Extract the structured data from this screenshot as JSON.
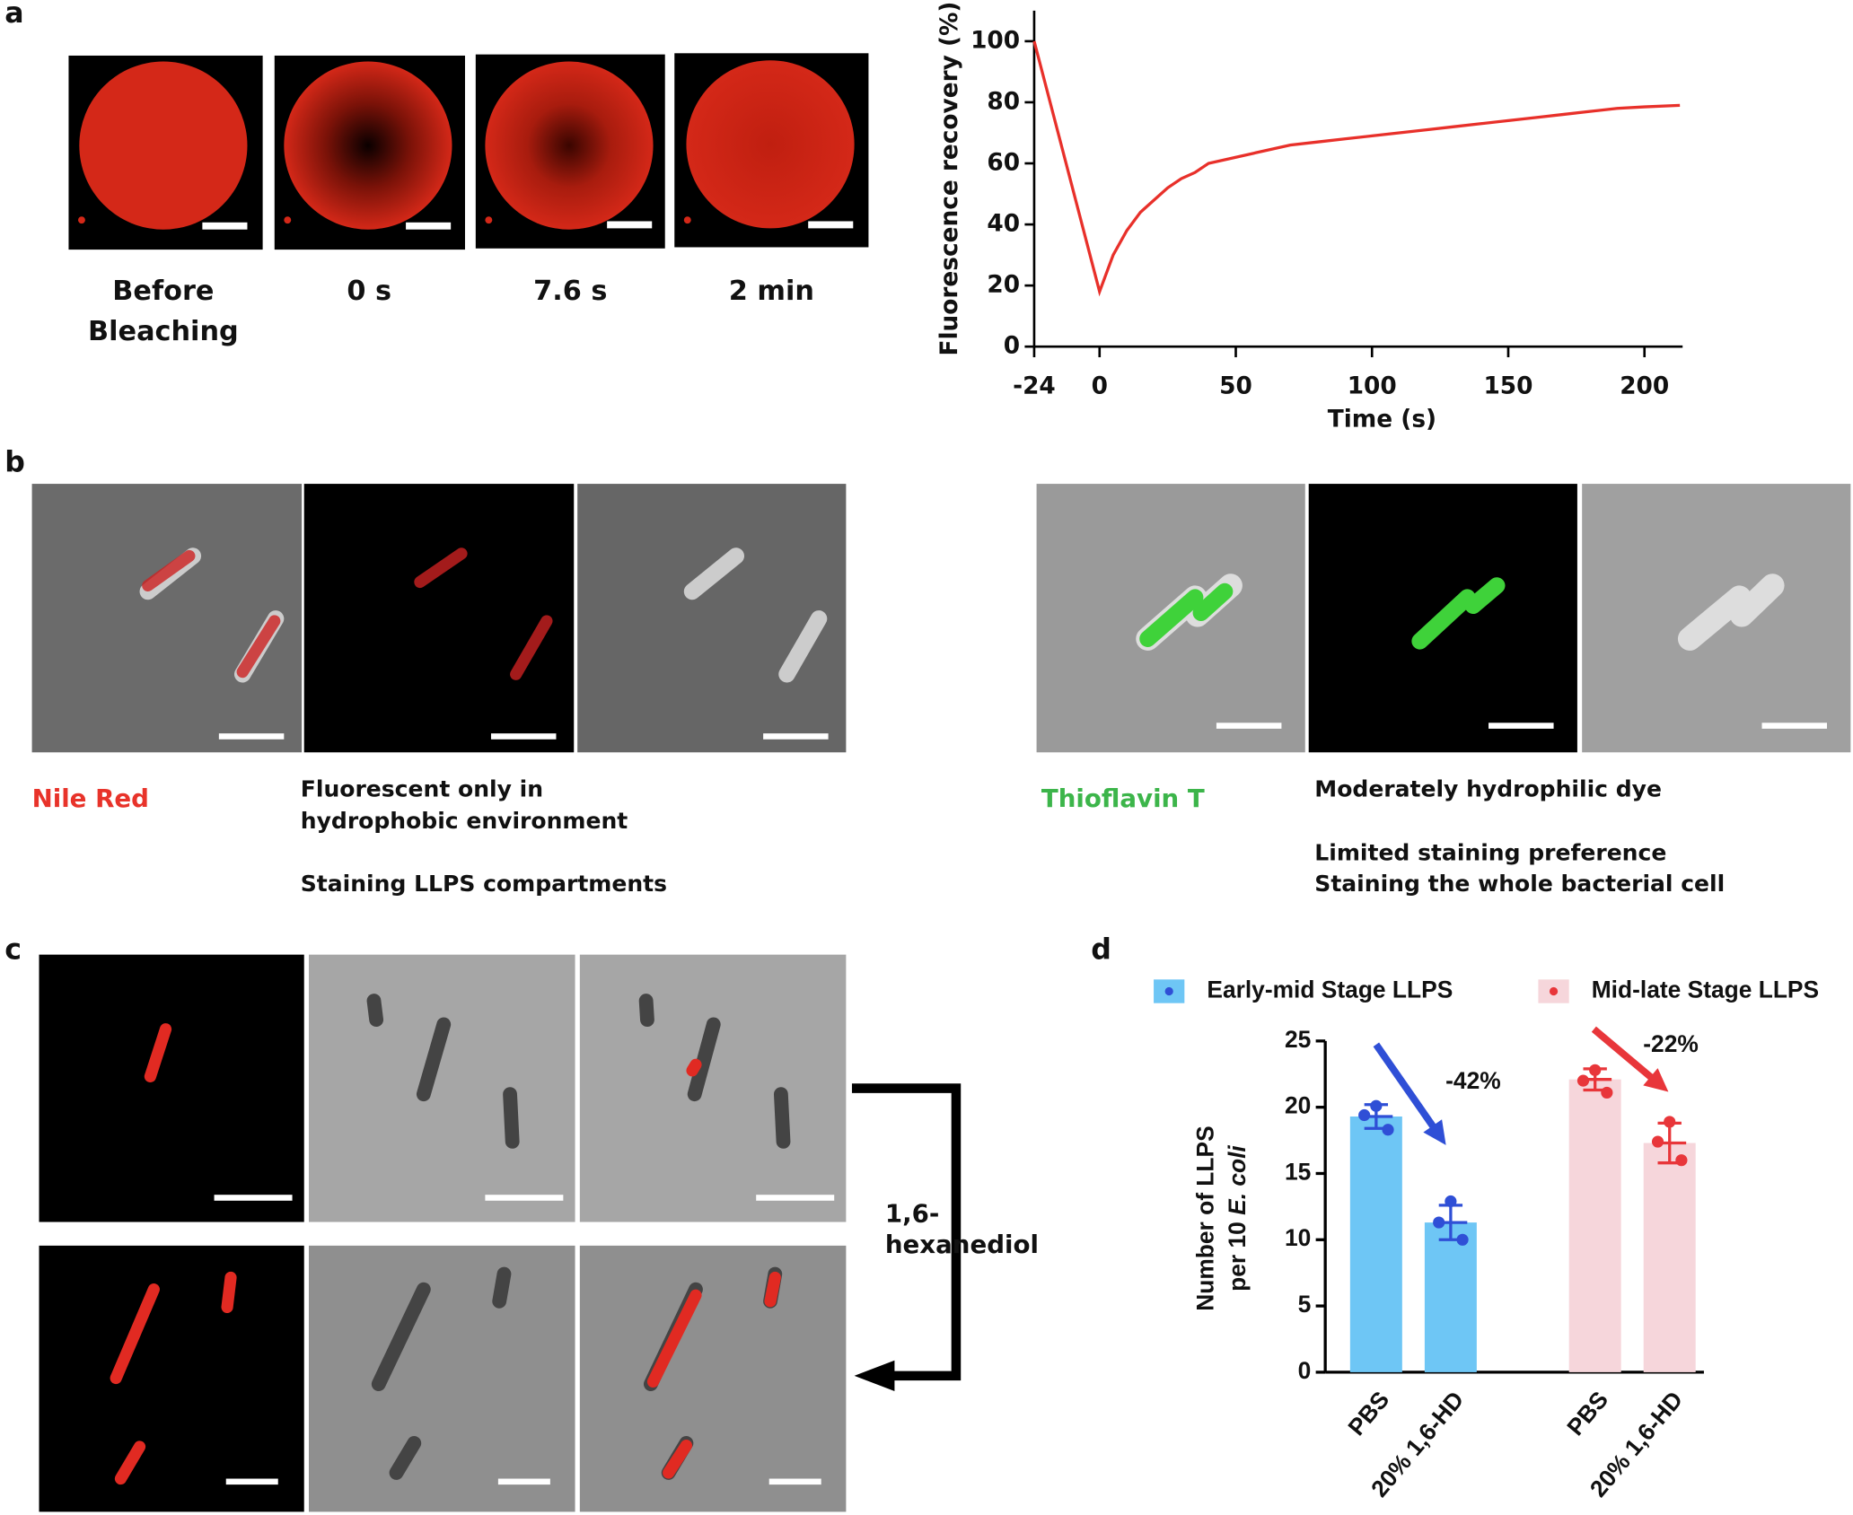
{
  "figure": {
    "panel_labels": [
      "a",
      "b",
      "c",
      "d"
    ],
    "a_images": [
      [
        "Before",
        "Bleaching"
      ],
      [
        "0 s"
      ],
      [
        "7.6 s"
      ],
      [
        "2 min"
      ]
    ],
    "b_left": {
      "dye": "Nile Red",
      "notes": [
        "Fluorescent only in",
        "hydrophobic environment",
        "Staining LLPS compartments"
      ]
    },
    "b_right": {
      "dye": "Thioflavin T",
      "notes": [
        "Moderately hydrophilic dye",
        "Limited staining preference",
        "Staining the whole bacterial cell"
      ]
    },
    "c_treatment": [
      "1,6-",
      "hexanediol"
    ]
  },
  "chart_data": [
    {
      "type": "line",
      "xlabel": "Time (s)",
      "ylabel": "Fluorescence recovery (%)",
      "color": "#e8302a",
      "x": [
        -24,
        0,
        5,
        10,
        15,
        20,
        25,
        30,
        35,
        40,
        50,
        60,
        70,
        80,
        90,
        100,
        110,
        120,
        130,
        140,
        150,
        160,
        170,
        180,
        190,
        200,
        213
      ],
      "y": [
        100,
        18,
        30,
        38,
        44,
        48,
        52,
        55,
        57,
        60,
        62,
        64,
        66,
        67,
        68,
        69,
        70,
        71,
        72,
        73,
        74,
        75,
        76,
        77,
        78,
        78.5,
        79
      ],
      "xlim": [
        -24,
        214
      ],
      "xticks": [
        -24,
        0,
        50,
        100,
        150,
        200
      ],
      "ylim": [
        0,
        110
      ],
      "yticks": [
        0,
        20,
        40,
        60,
        80,
        100
      ]
    },
    {
      "type": "bar",
      "ylabel": [
        "Number of LLPS",
        "per 10",
        "E. coli"
      ],
      "categories": [
        "PBS",
        "20% 1,6-HD"
      ],
      "series": [
        {
          "name": "Early-mid Stage LLPS",
          "color": "#6ec6f5",
          "point_color": "#2f4fd6",
          "values": [
            19.3,
            11.3
          ],
          "errors": [
            0.9,
            1.3
          ],
          "points": [
            [
              20.1,
              19.4,
              18.3
            ],
            [
              12.9,
              11.3,
              10.0
            ]
          ]
        },
        {
          "name": "Mid-late Stage LLPS",
          "color": "#f6d6db",
          "point_color": "#e8363a",
          "values": [
            22.1,
            17.3
          ],
          "errors": [
            0.8,
            1.5
          ],
          "points": [
            [
              22.8,
              22.0,
              21.1
            ],
            [
              18.9,
              17.4,
              16.0
            ]
          ]
        }
      ],
      "annotations": [
        "-42%",
        "-22%"
      ],
      "ylim": [
        0,
        25
      ],
      "yticks": [
        0,
        5,
        10,
        15,
        20,
        25
      ]
    }
  ]
}
